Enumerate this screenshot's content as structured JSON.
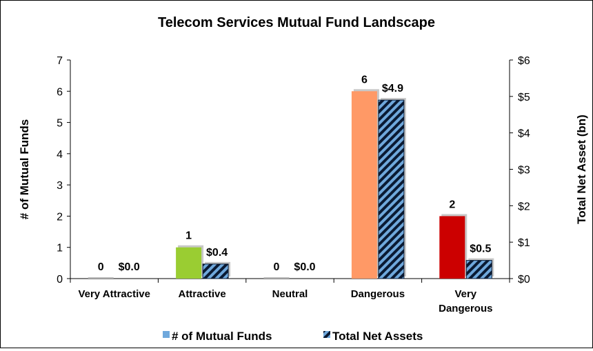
{
  "chart_data": {
    "type": "bar",
    "title": "Telecom Services Mutual Fund Landscape",
    "categories": [
      [
        "Very Attractive"
      ],
      [
        "Attractive"
      ],
      [
        "Neutral"
      ],
      [
        "Dangerous"
      ],
      [
        "Very",
        "Dangerous"
      ]
    ],
    "ylabel": "# of Mutual Funds",
    "y2label": "Total Net Asset (bn)",
    "ylim": [
      0,
      7
    ],
    "y2lim": [
      0,
      6
    ],
    "yticks": [
      "0",
      "1",
      "2",
      "3",
      "4",
      "5",
      "6",
      "7"
    ],
    "y2ticks": [
      "$0",
      "$1",
      "$2",
      "$3",
      "$4",
      "$5",
      "$6"
    ],
    "legend_position": "bottom",
    "series": [
      {
        "name": "# of Mutual Funds",
        "axis": "left",
        "values": [
          0,
          1,
          0,
          6,
          2
        ],
        "labels": [
          "0",
          "1",
          "0",
          "6",
          "2"
        ],
        "colors": [
          "#b8b8b8",
          "#9acd32",
          "#b8b8b8",
          "#ff9966",
          "#cc0000"
        ],
        "legend_color": "#6fa8dc"
      },
      {
        "name": "Total Net Assets",
        "axis": "right",
        "values": [
          0.0,
          0.4,
          0.0,
          4.9,
          0.5
        ],
        "labels": [
          "$0.0",
          "$0.4",
          "$0.0",
          "$4.9",
          "$0.5"
        ],
        "pattern": "diagonal-stripes",
        "colors": [
          "#6fa8dc",
          "#0a1a33"
        ]
      }
    ]
  }
}
